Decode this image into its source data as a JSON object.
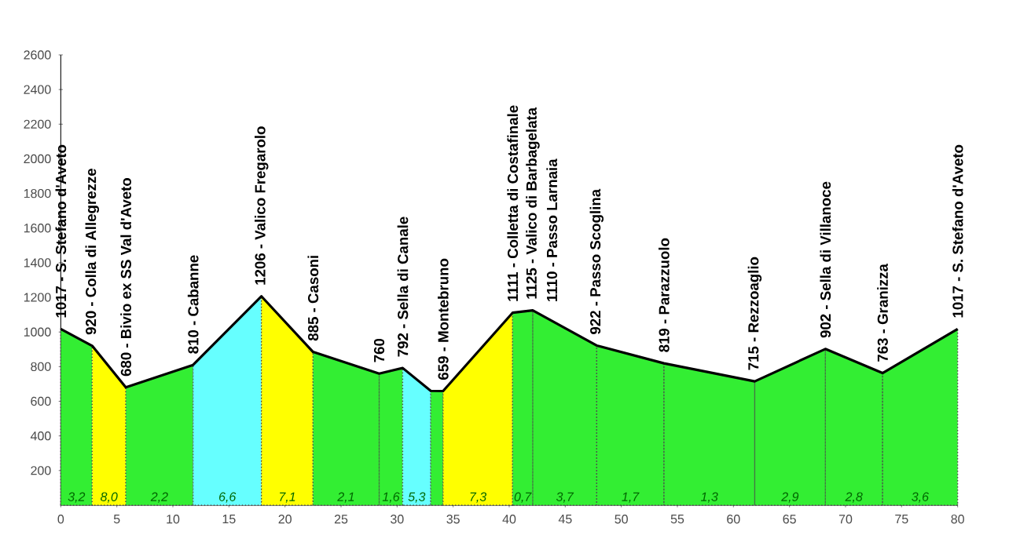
{
  "chart_data": {
    "type": "area",
    "xlim": [
      0,
      80
    ],
    "ylim": [
      0,
      2600
    ],
    "xticks": [
      0,
      5,
      10,
      15,
      20,
      25,
      30,
      35,
      40,
      45,
      50,
      55,
      60,
      65,
      70,
      75,
      80
    ],
    "yticks": [
      200,
      400,
      600,
      800,
      1000,
      1200,
      1400,
      1600,
      1800,
      2000,
      2200,
      2400,
      2600
    ],
    "grid": false,
    "series": [
      {
        "type": "area",
        "color": "#33ee33",
        "x": [
          0,
          2.8
        ],
        "values": [
          1017,
          920
        ]
      },
      {
        "type": "area",
        "color": "#ffff00",
        "x": [
          2.8,
          5.8
        ],
        "values": [
          920,
          680
        ]
      },
      {
        "type": "area",
        "color": "#33ee33",
        "x": [
          5.8,
          11.8
        ],
        "values": [
          680,
          810
        ]
      },
      {
        "type": "area",
        "color": "#66ffff",
        "x": [
          11.8,
          17.9
        ],
        "values": [
          810,
          1206
        ]
      },
      {
        "type": "area",
        "color": "#ffff00",
        "x": [
          17.9,
          22.5
        ],
        "values": [
          1206,
          885
        ]
      },
      {
        "type": "area",
        "color": "#33ee33",
        "x": [
          22.5,
          28.4,
          30.5
        ],
        "values": [
          885,
          760,
          792
        ]
      },
      {
        "type": "area",
        "color": "#66ffff",
        "x": [
          30.5,
          33.0
        ],
        "values": [
          792,
          660
        ]
      },
      {
        "type": "area",
        "color": "#33ee33",
        "x": [
          33.0,
          34.1
        ],
        "values": [
          660,
          659
        ]
      },
      {
        "type": "area",
        "color": "#ffff00",
        "x": [
          34.1,
          40.3
        ],
        "values": [
          659,
          1111
        ]
      },
      {
        "type": "area",
        "color": "#33ee33",
        "x": [
          40.3,
          42.1,
          47.8,
          53.8,
          61.9,
          68.2,
          73.3,
          80
        ],
        "values": [
          1111,
          1125,
          922,
          819,
          715,
          902,
          763,
          1017
        ]
      },
      {
        "type": "line",
        "color": "#000000",
        "x": [
          0,
          2.8,
          5.8,
          11.8,
          17.9,
          22.5,
          28.4,
          30.5,
          33.0,
          34.1,
          40.3,
          42.1,
          47.8,
          53.8,
          61.9,
          68.2,
          73.3,
          80
        ],
        "values": [
          1017,
          920,
          680,
          810,
          1206,
          885,
          760,
          792,
          660,
          659,
          1111,
          1125,
          922,
          819,
          715,
          902,
          763,
          1017
        ]
      }
    ],
    "annotations": [
      {
        "text": "1017 - S. Stefano d'Aveto",
        "x": 0,
        "y": 1017
      },
      {
        "text": "920 - Colla di Allegrezze",
        "x": 2.8,
        "y": 920
      },
      {
        "text": "680 - Bivio ex SS Val d'Aveto",
        "x": 5.8,
        "y": 680
      },
      {
        "text": "810 - Cabanne",
        "x": 11.8,
        "y": 810
      },
      {
        "text": "1206 - Valico Fregarolo",
        "x": 17.9,
        "y": 1206
      },
      {
        "text": "885 - Casoni",
        "x": 22.5,
        "y": 885
      },
      {
        "text": "760",
        "x": 28.4,
        "y": 760
      },
      {
        "text": "792 - Sella di Canale",
        "x": 30.5,
        "y": 792
      },
      {
        "text": "659 - Montebruno",
        "x": 34.1,
        "y": 659
      },
      {
        "text": "1111 - Colletta di Costafinale",
        "x": 40.3,
        "y": 1111
      },
      {
        "text": "1125 - Valico di Barbagelata",
        "x": 42.1,
        "y": 1125
      },
      {
        "text": "1110 - Passo Larnaia",
        "x": 43.8,
        "y": 1110
      },
      {
        "text": "922 - Passo Scoglina",
        "x": 47.8,
        "y": 922
      },
      {
        "text": "819 - Parazzuolo",
        "x": 53.8,
        "y": 819
      },
      {
        "text": "715 - Rezzoaglio",
        "x": 61.9,
        "y": 715
      },
      {
        "text": "902 - Sella di Villanoce",
        "x": 68.2,
        "y": 902
      },
      {
        "text": "763 - Granizza",
        "x": 73.3,
        "y": 763
      },
      {
        "text": "1017 - S. Stefano d'Aveto",
        "x": 80,
        "y": 1017
      },
      "3,2",
      "8,0",
      "2,2",
      "6,6",
      "7,1",
      "2,1",
      "1,6",
      "5,3",
      "7,3",
      "0,7",
      "3,7",
      "1,7",
      "1,3",
      "2,9",
      "2,8",
      "3,6"
    ]
  }
}
